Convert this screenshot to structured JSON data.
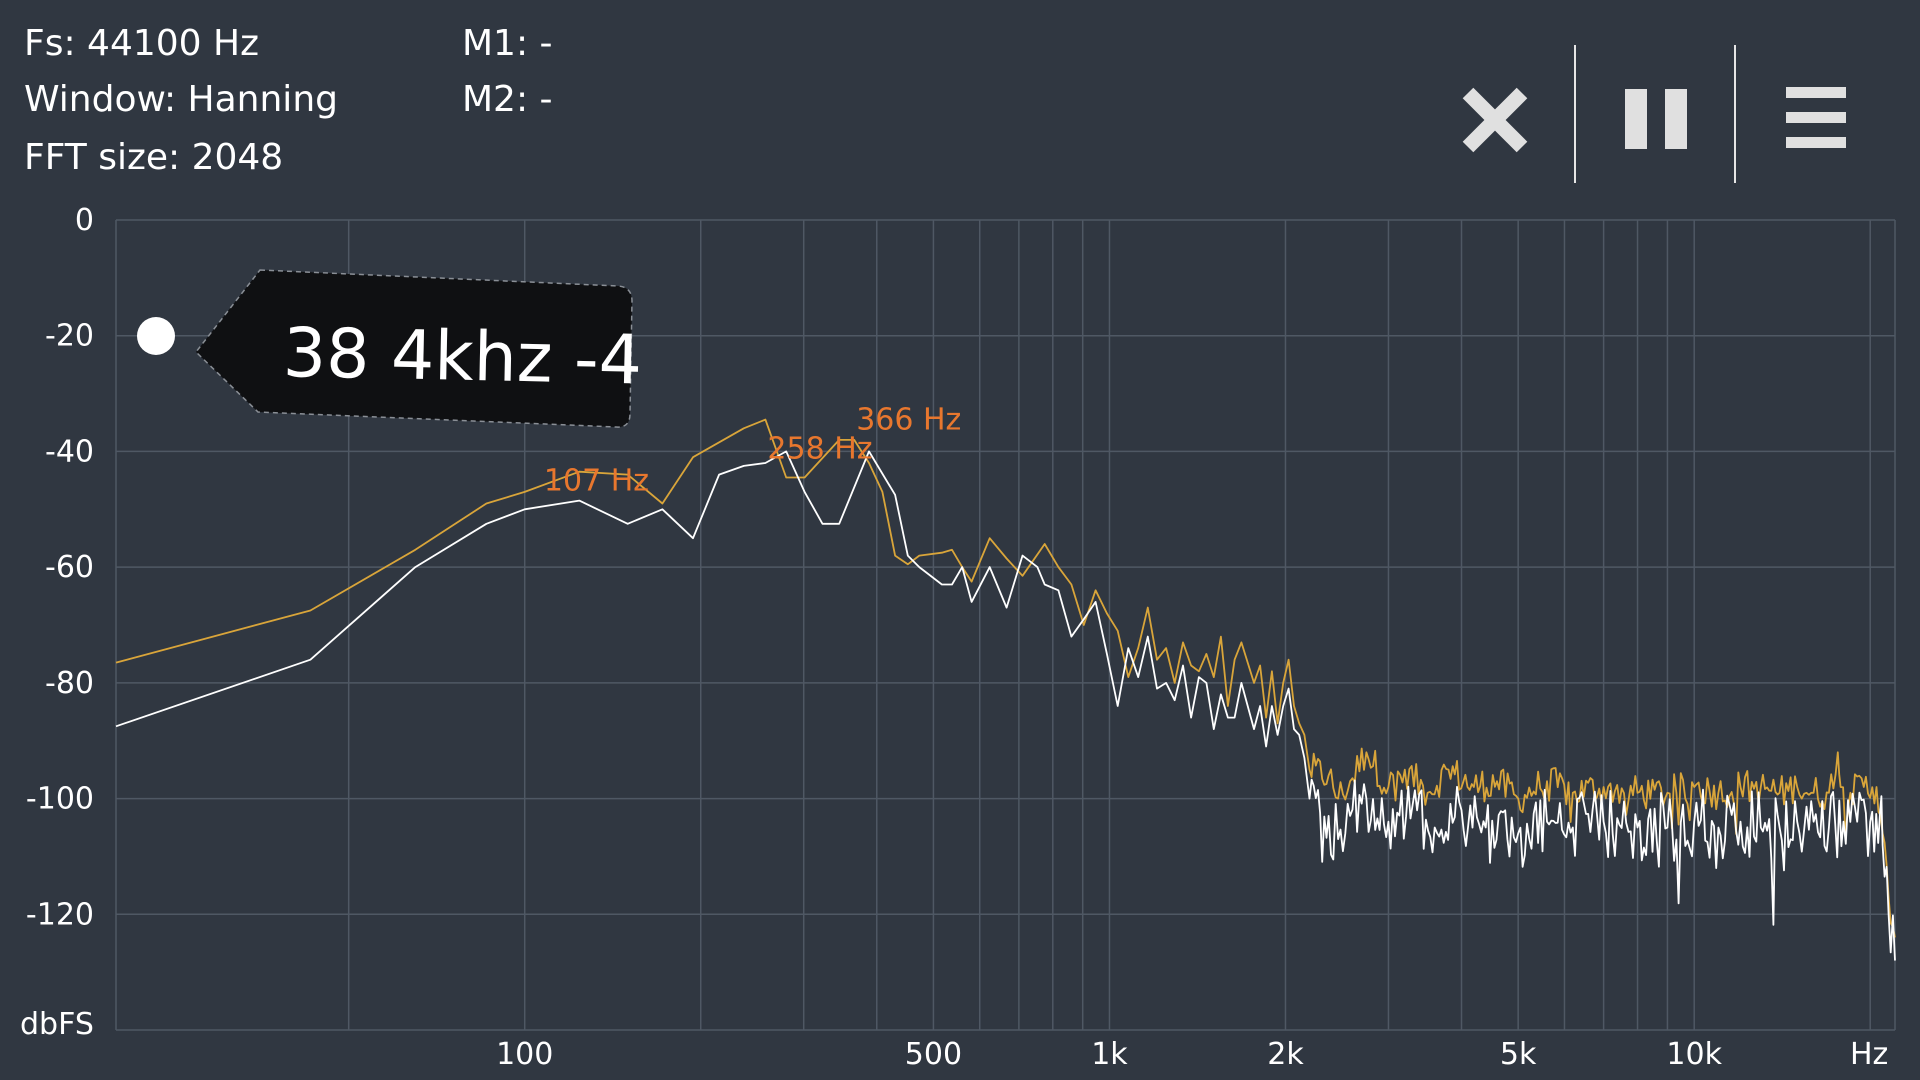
{
  "header": {
    "fs": "Fs: 44100 Hz",
    "window": "Window: Hanning",
    "fft_size": "FFT size: 2048",
    "m1": "M1: -",
    "m2": "M2: -"
  },
  "toolbar": {
    "close_icon": "close-icon",
    "pause_icon": "pause-icon",
    "menu_icon": "menu-icon"
  },
  "tooltip": {
    "text": "38 4khz -4"
  },
  "colors": {
    "background": "#303741",
    "grid": "#4f5864",
    "series_peak": "#d9a53a",
    "series_live": "#ffffff",
    "peak_labels": "#e8772e"
  },
  "chart_data": {
    "type": "line",
    "x_scale": "log",
    "xlim": [
      20,
      22050
    ],
    "ylim": [
      -140,
      0
    ],
    "grid": true,
    "y_unit_label": "dbFS",
    "x_unit_label": "Hz",
    "y_ticks": [
      {
        "value": 0,
        "label": "0"
      },
      {
        "value": -20,
        "label": "-20"
      },
      {
        "value": -40,
        "label": "-40"
      },
      {
        "value": -60,
        "label": "-60"
      },
      {
        "value": -80,
        "label": "-80"
      },
      {
        "value": -100,
        "label": "-100"
      },
      {
        "value": -120,
        "label": "-120"
      }
    ],
    "x_ticks": [
      {
        "value": 100,
        "label": "100"
      },
      {
        "value": 500,
        "label": "500"
      },
      {
        "value": 1000,
        "label": "1k"
      },
      {
        "value": 2000,
        "label": "2k"
      },
      {
        "value": 5000,
        "label": "5k"
      },
      {
        "value": 10000,
        "label": "10k"
      }
    ],
    "x_gridlines": [
      50,
      100,
      200,
      300,
      400,
      500,
      600,
      700,
      800,
      900,
      1000,
      2000,
      3000,
      4000,
      5000,
      6000,
      7000,
      8000,
      9000,
      10000,
      20000
    ],
    "peak_labels": [
      {
        "text": "107 Hz",
        "freq": 107,
        "db": -45
      },
      {
        "text": "258 Hz",
        "freq": 258,
        "db": -39.5
      },
      {
        "text": "366 Hz",
        "freq": 366,
        "db": -34.5
      }
    ],
    "series": [
      {
        "role": "peak-hold",
        "color": "#d9a53a",
        "points": [
          [
            20,
            -76.5
          ],
          [
            43,
            -67.5
          ],
          [
            65,
            -57
          ],
          [
            86,
            -49
          ],
          [
            100,
            -47
          ],
          [
            124,
            -43.5
          ],
          [
            150,
            -44
          ],
          [
            172,
            -49
          ],
          [
            194,
            -41
          ],
          [
            237,
            -36
          ],
          [
            258,
            -34.5
          ],
          [
            280,
            -44.5
          ],
          [
            301,
            -44.5
          ],
          [
            345,
            -38
          ],
          [
            366,
            -38
          ],
          [
            388,
            -42
          ],
          [
            409,
            -47
          ],
          [
            430,
            -58
          ],
          [
            452,
            -59.5
          ],
          [
            473,
            -58
          ],
          [
            517,
            -57.5
          ],
          [
            538,
            -57
          ],
          [
            560,
            -60
          ],
          [
            581,
            -62.5
          ],
          [
            624,
            -55
          ],
          [
            667,
            -58.5
          ],
          [
            710,
            -61.5
          ],
          [
            775,
            -56
          ],
          [
            818,
            -60
          ],
          [
            861,
            -63
          ],
          [
            904,
            -70
          ],
          [
            947,
            -64
          ],
          [
            990,
            -68
          ],
          [
            1033,
            -71
          ],
          [
            1077,
            -79
          ],
          [
            1120,
            -74
          ],
          [
            1163,
            -67
          ],
          [
            1206,
            -76
          ],
          [
            1250,
            -74
          ],
          [
            1293,
            -80
          ],
          [
            1336,
            -73
          ],
          [
            1379,
            -77
          ],
          [
            1422,
            -78
          ],
          [
            1465,
            -75
          ],
          [
            1508,
            -79
          ],
          [
            1551,
            -72
          ],
          [
            1594,
            -84
          ],
          [
            1637,
            -76
          ],
          [
            1681,
            -73
          ],
          [
            1767,
            -80
          ],
          [
            1810,
            -77
          ],
          [
            1853,
            -86
          ],
          [
            1896,
            -78
          ],
          [
            1939,
            -87
          ],
          [
            1982,
            -80
          ],
          [
            2025,
            -76
          ],
          [
            2068,
            -84
          ],
          [
            2111,
            -87
          ],
          [
            2155,
            -89
          ],
          [
            2198,
            -95
          ],
          [
            2370,
            -96
          ],
          [
            2460,
            -100
          ],
          [
            2580,
            -97
          ],
          [
            2750,
            -92
          ],
          [
            3000,
            -98
          ],
          [
            3200,
            -95
          ],
          [
            3500,
            -99
          ],
          [
            3800,
            -95
          ],
          [
            4200,
            -98
          ],
          [
            4600,
            -97
          ],
          [
            5000,
            -100
          ],
          [
            5600,
            -97
          ],
          [
            6200,
            -99
          ],
          [
            7000,
            -98
          ],
          [
            8000,
            -99
          ],
          [
            9000,
            -99
          ],
          [
            10000,
            -98
          ],
          [
            11000,
            -99
          ],
          [
            12000,
            -98
          ],
          [
            13000,
            -98
          ],
          [
            14000,
            -99
          ],
          [
            15000,
            -98
          ],
          [
            16000,
            -99
          ],
          [
            17000,
            -99
          ],
          [
            17600,
            -92
          ],
          [
            17800,
            -98
          ],
          [
            18500,
            -99
          ],
          [
            19500,
            -98
          ],
          [
            20500,
            -98
          ],
          [
            21000,
            -106
          ],
          [
            21500,
            -117
          ],
          [
            22050,
            -124
          ]
        ],
        "noise_from": 2198,
        "noise_amplitude": 3
      },
      {
        "role": "live",
        "color": "#ffffff",
        "points": [
          [
            20,
            -87.5
          ],
          [
            43,
            -76
          ],
          [
            65,
            -60
          ],
          [
            86,
            -52.5
          ],
          [
            100,
            -50
          ],
          [
            124,
            -48.5
          ],
          [
            150,
            -52.5
          ],
          [
            172,
            -50
          ],
          [
            194,
            -55
          ],
          [
            215,
            -44
          ],
          [
            237,
            -42.5
          ],
          [
            258,
            -42
          ],
          [
            280,
            -40
          ],
          [
            301,
            -47
          ],
          [
            323,
            -52.5
          ],
          [
            345,
            -52.5
          ],
          [
            388,
            -40
          ],
          [
            430,
            -47.5
          ],
          [
            452,
            -58
          ],
          [
            473,
            -60
          ],
          [
            517,
            -63
          ],
          [
            538,
            -63
          ],
          [
            560,
            -60
          ],
          [
            581,
            -66
          ],
          [
            624,
            -60
          ],
          [
            667,
            -67
          ],
          [
            710,
            -58
          ],
          [
            753,
            -60
          ],
          [
            775,
            -63
          ],
          [
            818,
            -64
          ],
          [
            861,
            -72
          ],
          [
            904,
            -69
          ],
          [
            947,
            -66
          ],
          [
            990,
            -75
          ],
          [
            1033,
            -84
          ],
          [
            1077,
            -74
          ],
          [
            1120,
            -79
          ],
          [
            1163,
            -72
          ],
          [
            1206,
            -81
          ],
          [
            1250,
            -80
          ],
          [
            1293,
            -83
          ],
          [
            1336,
            -77
          ],
          [
            1379,
            -86
          ],
          [
            1422,
            -79
          ],
          [
            1465,
            -80
          ],
          [
            1508,
            -88
          ],
          [
            1551,
            -82
          ],
          [
            1594,
            -86
          ],
          [
            1637,
            -86
          ],
          [
            1681,
            -80
          ],
          [
            1767,
            -88
          ],
          [
            1810,
            -84
          ],
          [
            1853,
            -91
          ],
          [
            1896,
            -84
          ],
          [
            1939,
            -89
          ],
          [
            1982,
            -84
          ],
          [
            2025,
            -81
          ],
          [
            2068,
            -88
          ],
          [
            2111,
            -89
          ],
          [
            2155,
            -93
          ],
          [
            2198,
            -100
          ],
          [
            2370,
            -103
          ],
          [
            2460,
            -107
          ],
          [
            2580,
            -103
          ],
          [
            2750,
            -100
          ],
          [
            3000,
            -104
          ],
          [
            3300,
            -101
          ],
          [
            3600,
            -105
          ],
          [
            4000,
            -102
          ],
          [
            4400,
            -105
          ],
          [
            5000,
            -106
          ],
          [
            5600,
            -104
          ],
          [
            6200,
            -105
          ],
          [
            7000,
            -104
          ],
          [
            8000,
            -105
          ],
          [
            9000,
            -105
          ],
          [
            10000,
            -104
          ],
          [
            11000,
            -105
          ],
          [
            12000,
            -104
          ],
          [
            13000,
            -105
          ],
          [
            14000,
            -105
          ],
          [
            15000,
            -104
          ],
          [
            16000,
            -104
          ],
          [
            17000,
            -105
          ],
          [
            18000,
            -104
          ],
          [
            19000,
            -104
          ],
          [
            20000,
            -104
          ],
          [
            20800,
            -102
          ],
          [
            21000,
            -108
          ],
          [
            21500,
            -120
          ],
          [
            22050,
            -128
          ]
        ],
        "noise_from": 2198,
        "noise_amplitude": 6
      }
    ]
  }
}
